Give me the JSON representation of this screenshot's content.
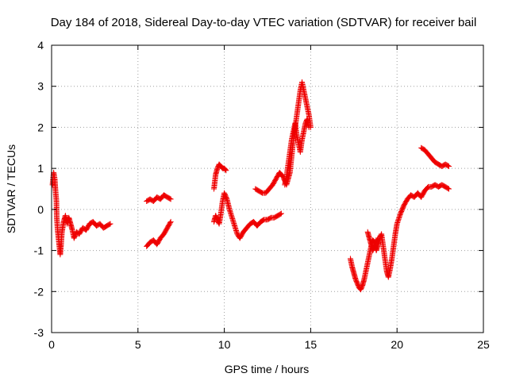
{
  "chart_data": {
    "type": "scatter",
    "title": "Day 184 of 2018, Sidereal Day-to-day VTEC variation (SDTVAR) for receiver bail",
    "xlabel": "GPS time / hours",
    "ylabel": "SDTVAR / TECUs",
    "xlim": [
      0,
      25
    ],
    "ylim": [
      -3,
      4
    ],
    "xticks": [
      "0",
      "5",
      "10",
      "15",
      "20",
      "25"
    ],
    "yticks": [
      "-3",
      "-2",
      "-1",
      "0",
      "1",
      "2",
      "3",
      "4"
    ],
    "grid": true,
    "marker": "+",
    "color": "#ee0000",
    "segments": [
      {
        "name": "seg1",
        "points": [
          [
            0.05,
            0.6
          ],
          [
            0.12,
            0.9
          ],
          [
            0.18,
            0.75
          ],
          [
            0.22,
            0.5
          ],
          [
            0.28,
            0.2
          ],
          [
            0.3,
            -0.2
          ],
          [
            0.35,
            -0.5
          ],
          [
            0.4,
            -0.7
          ],
          [
            0.45,
            -0.9
          ],
          [
            0.5,
            -1.1
          ],
          [
            0.55,
            -0.85
          ],
          [
            0.6,
            -0.55
          ],
          [
            0.7,
            -0.3
          ],
          [
            0.8,
            -0.15
          ],
          [
            0.9,
            -0.35
          ],
          [
            1.0,
            -0.2
          ],
          [
            1.1,
            -0.35
          ],
          [
            1.2,
            -0.5
          ],
          [
            1.3,
            -0.7
          ],
          [
            1.45,
            -0.55
          ],
          [
            1.6,
            -0.6
          ],
          [
            1.8,
            -0.45
          ],
          [
            2.0,
            -0.5
          ],
          [
            2.2,
            -0.35
          ],
          [
            2.4,
            -0.3
          ],
          [
            2.6,
            -0.4
          ],
          [
            2.8,
            -0.35
          ],
          [
            3.0,
            -0.45
          ],
          [
            3.2,
            -0.4
          ],
          [
            3.4,
            -0.35
          ]
        ]
      },
      {
        "name": "seg2",
        "points": [
          [
            5.5,
            0.2
          ],
          [
            5.7,
            0.25
          ],
          [
            5.9,
            0.2
          ],
          [
            6.1,
            0.3
          ],
          [
            6.3,
            0.25
          ],
          [
            6.5,
            0.35
          ],
          [
            6.7,
            0.3
          ],
          [
            6.9,
            0.25
          ]
        ]
      },
      {
        "name": "seg3",
        "points": [
          [
            5.5,
            -0.9
          ],
          [
            5.7,
            -0.8
          ],
          [
            5.9,
            -0.75
          ],
          [
            6.1,
            -0.85
          ],
          [
            6.3,
            -0.7
          ],
          [
            6.5,
            -0.6
          ],
          [
            6.7,
            -0.45
          ],
          [
            6.9,
            -0.3
          ]
        ]
      },
      {
        "name": "seg4",
        "points": [
          [
            9.4,
            0.5
          ],
          [
            9.5,
            0.85
          ],
          [
            9.6,
            1.0
          ],
          [
            9.7,
            1.1
          ],
          [
            9.8,
            1.05
          ],
          [
            9.9,
            1.0
          ],
          [
            10.0,
            1.0
          ],
          [
            10.1,
            0.95
          ]
        ]
      },
      {
        "name": "seg5",
        "points": [
          [
            9.4,
            -0.3
          ],
          [
            9.5,
            -0.15
          ],
          [
            9.6,
            -0.25
          ],
          [
            9.7,
            -0.35
          ],
          [
            9.8,
            -0.1
          ],
          [
            9.9,
            0.2
          ],
          [
            10.0,
            0.4
          ],
          [
            10.15,
            0.25
          ],
          [
            10.3,
            0.0
          ],
          [
            10.45,
            -0.2
          ],
          [
            10.6,
            -0.4
          ],
          [
            10.75,
            -0.6
          ],
          [
            10.9,
            -0.7
          ],
          [
            11.1,
            -0.55
          ],
          [
            11.3,
            -0.45
          ],
          [
            11.5,
            -0.35
          ],
          [
            11.7,
            -0.3
          ],
          [
            11.9,
            -0.4
          ],
          [
            12.1,
            -0.3
          ],
          [
            12.3,
            -0.25
          ],
          [
            12.5,
            -0.25
          ],
          [
            12.7,
            -0.2
          ],
          [
            12.9,
            -0.2
          ],
          [
            13.1,
            -0.15
          ],
          [
            13.3,
            -0.1
          ]
        ]
      },
      {
        "name": "seg6",
        "points": [
          [
            11.8,
            0.5
          ],
          [
            12.0,
            0.45
          ],
          [
            12.2,
            0.4
          ],
          [
            12.4,
            0.4
          ],
          [
            12.6,
            0.5
          ],
          [
            12.8,
            0.6
          ],
          [
            13.0,
            0.75
          ],
          [
            13.2,
            0.9
          ],
          [
            13.4,
            0.8
          ],
          [
            13.6,
            0.6
          ],
          [
            13.8,
            0.9
          ],
          [
            13.9,
            1.3
          ],
          [
            14.0,
            1.7
          ],
          [
            14.1,
            2.0
          ],
          [
            14.2,
            2.3
          ],
          [
            14.3,
            2.6
          ],
          [
            14.4,
            2.9
          ],
          [
            14.5,
            3.1
          ],
          [
            14.6,
            2.9
          ],
          [
            14.7,
            2.7
          ],
          [
            14.8,
            2.5
          ],
          [
            14.9,
            2.3
          ],
          [
            15.0,
            2.0
          ]
        ]
      },
      {
        "name": "seg7",
        "points": [
          [
            13.5,
            0.6
          ],
          [
            13.6,
            0.8
          ],
          [
            13.7,
            1.1
          ],
          [
            13.8,
            1.4
          ],
          [
            13.9,
            1.7
          ],
          [
            14.0,
            1.9
          ],
          [
            14.1,
            2.1
          ],
          [
            14.2,
            1.8
          ],
          [
            14.3,
            1.6
          ],
          [
            14.4,
            1.4
          ],
          [
            14.5,
            1.7
          ],
          [
            14.6,
            1.9
          ],
          [
            14.7,
            2.1
          ],
          [
            14.8,
            2.2
          ],
          [
            14.9,
            2.0
          ]
        ]
      },
      {
        "name": "seg8",
        "points": [
          [
            17.3,
            -1.2
          ],
          [
            17.4,
            -1.4
          ],
          [
            17.5,
            -1.55
          ],
          [
            17.6,
            -1.7
          ],
          [
            17.7,
            -1.8
          ],
          [
            17.8,
            -1.9
          ],
          [
            17.9,
            -1.95
          ],
          [
            18.0,
            -1.85
          ],
          [
            18.1,
            -1.7
          ],
          [
            18.2,
            -1.5
          ],
          [
            18.3,
            -1.3
          ],
          [
            18.4,
            -1.1
          ],
          [
            18.5,
            -0.9
          ],
          [
            18.6,
            -0.75
          ],
          [
            18.7,
            -0.8
          ],
          [
            18.8,
            -1.0
          ],
          [
            18.9,
            -0.85
          ],
          [
            19.0,
            -0.7
          ],
          [
            19.1,
            -0.6
          ],
          [
            19.2,
            -0.9
          ],
          [
            19.3,
            -1.2
          ],
          [
            19.4,
            -1.5
          ],
          [
            19.5,
            -1.65
          ],
          [
            19.6,
            -1.45
          ],
          [
            19.7,
            -1.2
          ],
          [
            19.8,
            -0.9
          ],
          [
            19.9,
            -0.6
          ],
          [
            20.0,
            -0.35
          ],
          [
            20.2,
            -0.1
          ],
          [
            20.4,
            0.1
          ],
          [
            20.6,
            0.25
          ],
          [
            20.8,
            0.35
          ],
          [
            21.0,
            0.3
          ],
          [
            21.2,
            0.4
          ],
          [
            21.4,
            0.3
          ],
          [
            21.6,
            0.45
          ],
          [
            21.8,
            0.55
          ],
          [
            22.0,
            0.55
          ],
          [
            22.2,
            0.6
          ],
          [
            22.4,
            0.55
          ],
          [
            22.6,
            0.6
          ],
          [
            22.8,
            0.55
          ],
          [
            23.0,
            0.5
          ]
        ]
      },
      {
        "name": "seg9",
        "points": [
          [
            18.3,
            -0.55
          ],
          [
            18.4,
            -0.7
          ],
          [
            18.5,
            -0.85
          ],
          [
            18.6,
            -1.0
          ],
          [
            18.7,
            -0.9
          ],
          [
            18.8,
            -0.8
          ],
          [
            18.9,
            -0.7
          ]
        ]
      },
      {
        "name": "seg10",
        "points": [
          [
            21.4,
            1.5
          ],
          [
            21.6,
            1.45
          ],
          [
            21.8,
            1.35
          ],
          [
            22.0,
            1.25
          ],
          [
            22.2,
            1.15
          ],
          [
            22.4,
            1.1
          ],
          [
            22.6,
            1.05
          ],
          [
            22.8,
            1.1
          ],
          [
            23.0,
            1.05
          ]
        ]
      }
    ]
  }
}
